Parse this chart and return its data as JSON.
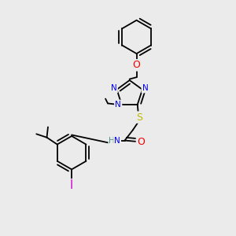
{
  "bg_color": "#ebebeb",
  "bond_color": "#000000",
  "atom_colors": {
    "N": "#0000ee",
    "O": "#ee0000",
    "S": "#bbbb00",
    "I": "#cc00cc",
    "H": "#4a9090",
    "C": "#000000"
  },
  "font_size": 7.5,
  "bond_width": 1.3,
  "figsize": [
    3.0,
    3.0
  ],
  "dpi": 100
}
